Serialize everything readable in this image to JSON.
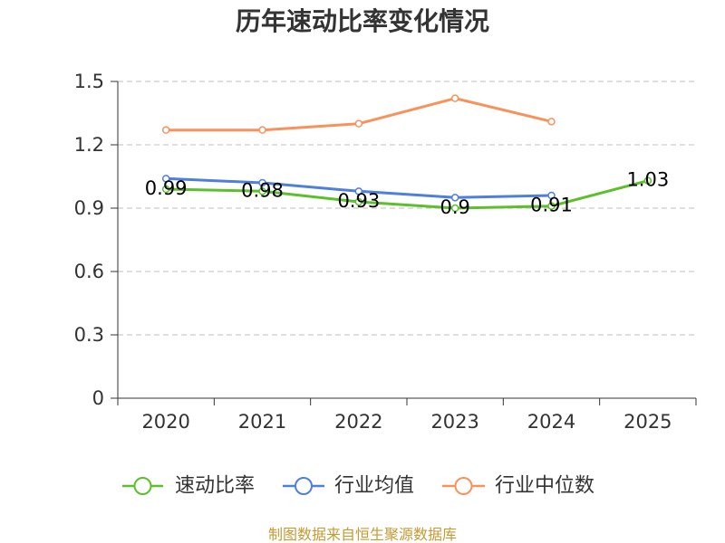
{
  "chart_data": {
    "type": "line",
    "title": "历年速动比率变化情况",
    "xlabel": "",
    "ylabel": "",
    "categories": [
      "2020",
      "2021",
      "2022",
      "2023",
      "2024",
      "2025"
    ],
    "ylim": [
      0,
      1.5
    ],
    "yticks": [
      0,
      0.3,
      0.6,
      0.9,
      1.2,
      1.5
    ],
    "grid": true,
    "legend_position": "bottom",
    "series": [
      {
        "name": "速动比率",
        "color": "#5cbf2c",
        "show_labels": true,
        "values": [
          0.99,
          0.98,
          0.93,
          0.9,
          0.91,
          1.03
        ]
      },
      {
        "name": "行业均值",
        "color": "#4f7fdc",
        "show_labels": false,
        "values": [
          1.04,
          1.02,
          0.98,
          0.95,
          0.96,
          null
        ]
      },
      {
        "name": "行业中位数",
        "color": "#f8925c",
        "show_labels": false,
        "values": [
          1.27,
          1.27,
          1.3,
          1.42,
          1.31,
          null
        ]
      }
    ]
  },
  "source_note": "制图数据来自恒生聚源数据库",
  "colors": {
    "grid": "#cccccc",
    "axis": "#333333",
    "source_note": "#c49a32"
  }
}
